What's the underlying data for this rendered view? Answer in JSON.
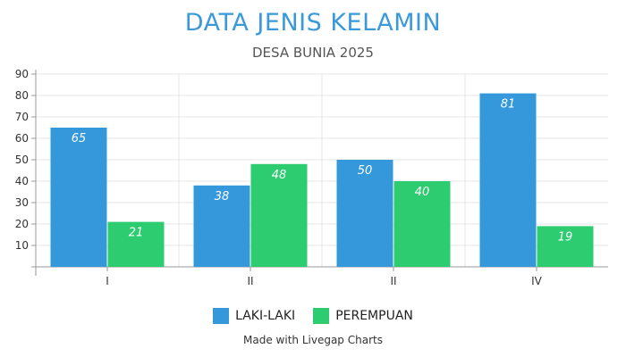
{
  "chart_data": {
    "type": "bar",
    "title": "DATA JENIS KELAMIN",
    "subtitle": "DESA BUNIA 2025",
    "categories": [
      "I",
      "II",
      "II",
      "IV"
    ],
    "series": [
      {
        "name": "LAKI-LAKI",
        "values": [
          65,
          38,
          50,
          81
        ],
        "color": "#3498db"
      },
      {
        "name": "PEREMPUAN",
        "values": [
          21,
          48,
          40,
          19
        ],
        "color": "#2ecc71"
      }
    ],
    "yticks": [
      10,
      20,
      30,
      40,
      50,
      60,
      70,
      80,
      90
    ],
    "ylim": [
      0,
      90
    ],
    "grid": true,
    "legend_position": "bottom",
    "data_labels": true
  },
  "footer": {
    "credit": "Made with Livegap Charts"
  }
}
